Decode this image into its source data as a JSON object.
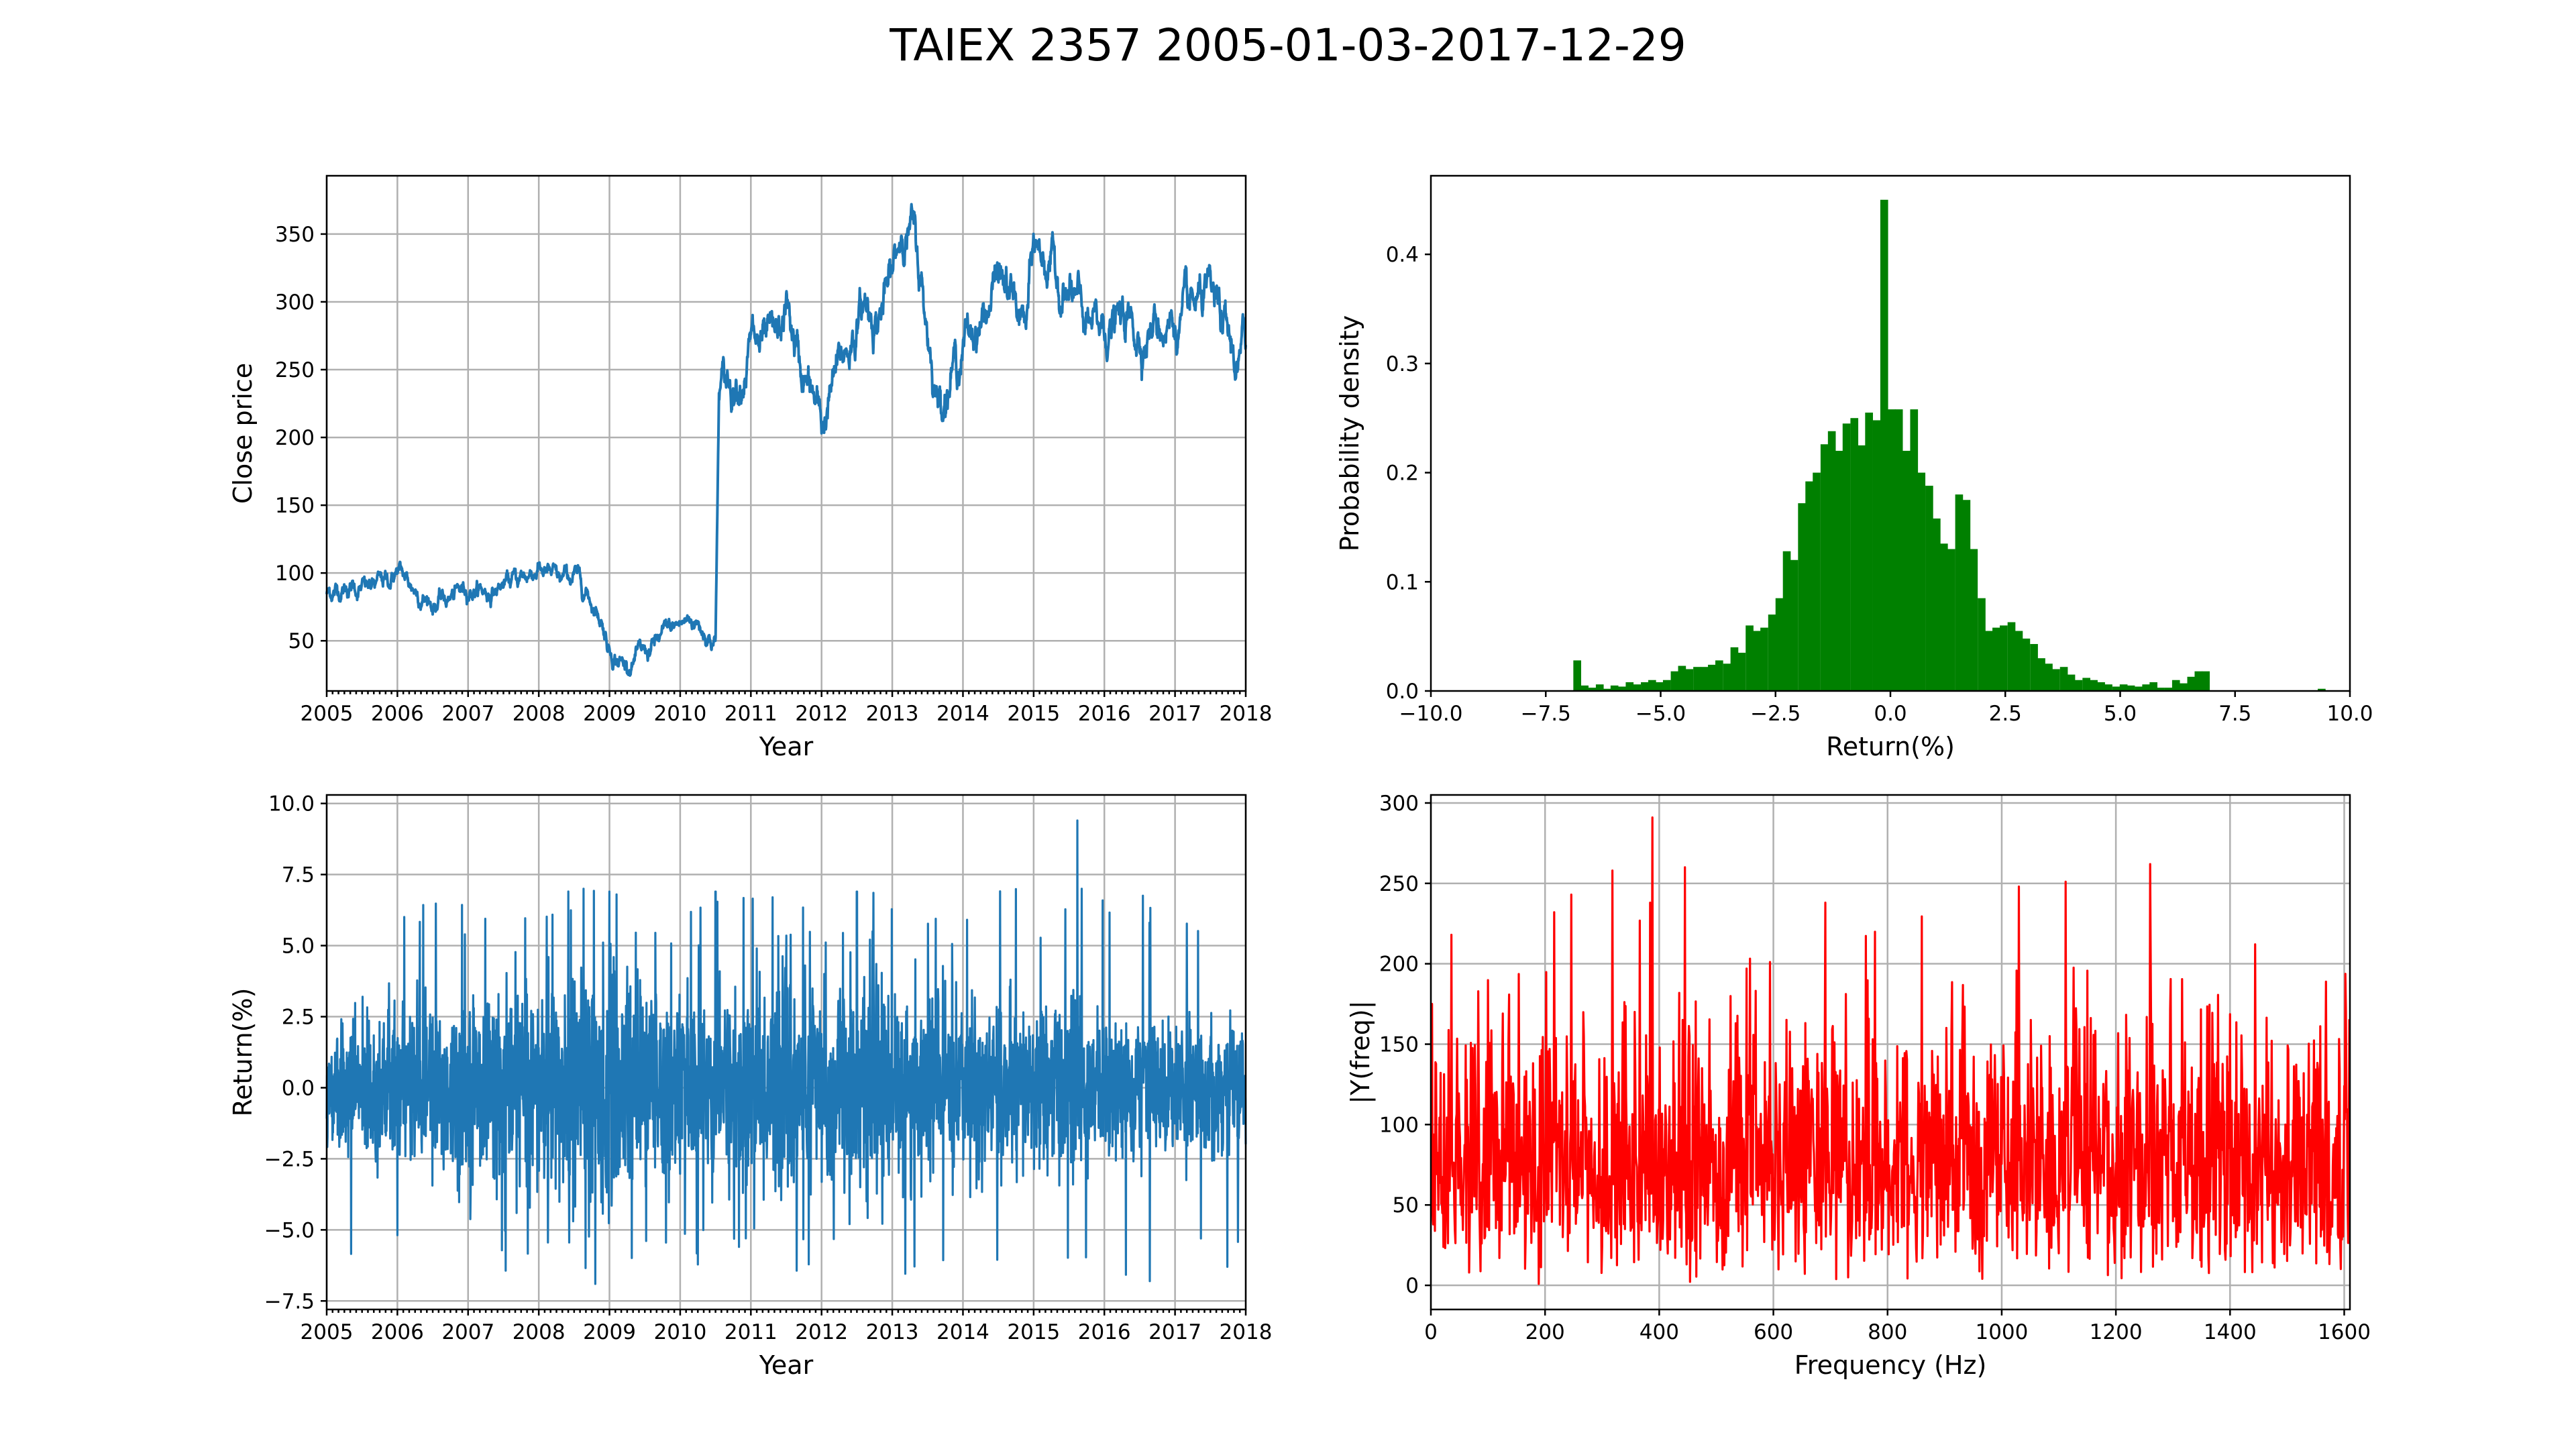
{
  "figure_title": "TAIEX 2357 2005-01-03-2017-12-29",
  "chart_data": [
    {
      "type": "line",
      "id": "price",
      "xlabel": "Year",
      "ylabel": "Close price",
      "xlim": [
        2005,
        2018
      ],
      "ylim": [
        13,
        393
      ],
      "xticks": [
        2005,
        2006,
        2007,
        2008,
        2009,
        2010,
        2011,
        2012,
        2013,
        2014,
        2015,
        2016,
        2017,
        2018
      ],
      "xtick_labels": [
        "2005",
        "2006",
        "2007",
        "2008",
        "2009",
        "2010",
        "2011",
        "2012",
        "2013",
        "2014",
        "2015",
        "2016",
        "2017",
        "2018"
      ],
      "yticks": [
        50,
        100,
        150,
        200,
        250,
        300,
        350
      ],
      "ytick_labels": [
        "50",
        "100",
        "150",
        "200",
        "250",
        "300",
        "350"
      ],
      "grid": true,
      "color": "#1f77b4",
      "x": [
        2005.0,
        2005.3,
        2005.6,
        2005.9,
        2006.0,
        2006.2,
        2006.5,
        2006.8,
        2007.0,
        2007.3,
        2007.6,
        2007.8,
        2008.0,
        2008.1,
        2008.3,
        2008.5,
        2008.7,
        2008.9,
        2009.0,
        2009.2,
        2009.5,
        2009.8,
        2010.0,
        2010.2,
        2010.4,
        2010.48,
        2010.5,
        2010.55,
        2010.7,
        2010.9,
        2011.0,
        2011.2,
        2011.4,
        2011.5,
        2011.7,
        2011.9,
        2012.0,
        2012.2,
        2012.4,
        2012.6,
        2012.8,
        2013.0,
        2013.15,
        2013.3,
        2013.5,
        2013.65,
        2013.8,
        2014.0,
        2014.3,
        2014.5,
        2014.7,
        2014.9,
        2015.0,
        2015.2,
        2015.4,
        2015.6,
        2015.75,
        2015.9,
        2016.0,
        2016.3,
        2016.5,
        2016.8,
        2017.0,
        2017.2,
        2017.4,
        2017.6,
        2017.8,
        2017.9,
        2018.0
      ],
      "y": [
        85,
        90,
        88,
        95,
        102,
        90,
        78,
        82,
        90,
        86,
        93,
        97,
        105,
        100,
        92,
        98,
        85,
        65,
        45,
        33,
        40,
        55,
        62,
        66,
        55,
        50,
        50,
        235,
        240,
        255,
        270,
        262,
        268,
        295,
        250,
        225,
        205,
        245,
        270,
        298,
        290,
        315,
        360,
        350,
        280,
        228,
        245,
        268,
        290,
        320,
        300,
        280,
        340,
        330,
        310,
        295,
        280,
        275,
        282,
        283,
        278,
        285,
        285,
        285,
        300,
        290,
        262,
        250,
        270
      ],
      "noise_amp": 4.5
    },
    {
      "type": "bar",
      "id": "histogram",
      "xlabel": "Return(%)",
      "ylabel": "Probability density",
      "xlim": [
        -10,
        10
      ],
      "ylim": [
        0,
        0.472
      ],
      "xticks": [
        -10,
        -7.5,
        -5,
        -2.5,
        0,
        2.5,
        5,
        7.5,
        10
      ],
      "xtick_labels": [
        "−10.0",
        "−7.5",
        "−5.0",
        "−2.5",
        "0.0",
        "2.5",
        "5.0",
        "7.5",
        "10.0"
      ],
      "yticks": [
        0,
        0.1,
        0.2,
        0.3,
        0.4
      ],
      "ytick_labels": [
        "0.0",
        "0.1",
        "0.2",
        "0.3",
        "0.4"
      ],
      "grid": false,
      "color": "#008000",
      "bin_width": 0.1628,
      "bin_starts": [
        -6.9,
        -6.74,
        -6.57,
        -6.41,
        -6.25,
        -6.09,
        -5.92,
        -5.76,
        -5.6,
        -5.43,
        -5.27,
        -5.11,
        -4.95,
        -4.78,
        -4.62,
        -4.46,
        -4.29,
        -4.13,
        -3.97,
        -3.81,
        -3.64,
        -3.48,
        -3.32,
        -3.15,
        -2.99,
        -2.83,
        -2.66,
        -2.5,
        -2.34,
        -2.18,
        -2.01,
        -1.85,
        -1.69,
        -1.52,
        -1.36,
        -1.2,
        -1.04,
        -0.87,
        -0.71,
        -0.55,
        -0.38,
        -0.22,
        -0.06,
        0.1,
        0.27,
        0.43,
        0.59,
        0.76,
        0.92,
        1.08,
        1.24,
        1.41,
        1.57,
        1.73,
        1.9,
        2.06,
        2.22,
        2.38,
        2.55,
        2.71,
        2.87,
        3.04,
        3.2,
        3.36,
        3.52,
        3.69,
        3.85,
        4.01,
        4.18,
        4.34,
        4.5,
        4.66,
        4.83,
        4.99,
        5.15,
        5.32,
        5.48,
        5.64,
        5.8,
        5.97,
        6.13,
        6.29,
        6.46,
        6.62,
        6.78,
        9.3
      ],
      "values": [
        0.028,
        0.005,
        0.003,
        0.006,
        0.002,
        0.005,
        0.004,
        0.008,
        0.006,
        0.008,
        0.01,
        0.008,
        0.01,
        0.018,
        0.023,
        0.02,
        0.022,
        0.022,
        0.024,
        0.028,
        0.025,
        0.04,
        0.035,
        0.06,
        0.055,
        0.058,
        0.07,
        0.085,
        0.128,
        0.12,
        0.172,
        0.192,
        0.2,
        0.226,
        0.238,
        0.22,
        0.245,
        0.25,
        0.225,
        0.255,
        0.248,
        0.45,
        0.258,
        0.258,
        0.22,
        0.258,
        0.2,
        0.188,
        0.158,
        0.135,
        0.13,
        0.18,
        0.175,
        0.13,
        0.085,
        0.055,
        0.058,
        0.06,
        0.063,
        0.055,
        0.048,
        0.043,
        0.03,
        0.025,
        0.02,
        0.022,
        0.015,
        0.01,
        0.012,
        0.01,
        0.008,
        0.006,
        0.004,
        0.006,
        0.005,
        0.004,
        0.006,
        0.008,
        0.003,
        0.003,
        0.01,
        0.007,
        0.013,
        0.018,
        0.018,
        0.002
      ]
    },
    {
      "type": "line",
      "id": "returns",
      "xlabel": "Year",
      "ylabel": "Return(%)",
      "xlim": [
        2005,
        2018
      ],
      "ylim": [
        -7.8,
        10.3
      ],
      "xticks": [
        2005,
        2006,
        2007,
        2008,
        2009,
        2010,
        2011,
        2012,
        2013,
        2014,
        2015,
        2016,
        2017,
        2018
      ],
      "xtick_labels": [
        "2005",
        "2006",
        "2007",
        "2008",
        "2009",
        "2010",
        "2011",
        "2012",
        "2013",
        "2014",
        "2015",
        "2016",
        "2017",
        "2018"
      ],
      "yticks": [
        -7.5,
        -5.0,
        -2.5,
        0.0,
        2.5,
        5.0,
        7.5,
        10.0
      ],
      "ytick_labels": [
        "−7.5",
        "−5.0",
        "−2.5",
        "0.0",
        "2.5",
        "5.0",
        "7.5",
        "10.0"
      ],
      "grid": true,
      "color": "#1f77b4",
      "sample_count": 3200,
      "volatility_knots": {
        "x": [
          2005,
          2006,
          2007,
          2008,
          2008.5,
          2009,
          2009.5,
          2010,
          2010.5,
          2011,
          2011.5,
          2012,
          2013,
          2014,
          2015,
          2015.6,
          2016,
          2017,
          2018
        ],
        "sd": [
          1.3,
          1.7,
          1.8,
          2.0,
          2.6,
          2.5,
          2.1,
          1.8,
          2.0,
          2.0,
          2.4,
          2.1,
          2.0,
          1.7,
          1.6,
          1.9,
          1.4,
          1.3,
          1.3
        ]
      },
      "highlights": {
        "x": [
          2015.62,
          2015.68,
          2008.8,
          2009.0,
          2010.5,
          2012.5
        ],
        "y": [
          9.4,
          7.0,
          -6.9,
          6.9,
          6.9,
          6.9
        ]
      }
    },
    {
      "type": "line",
      "id": "spectrum",
      "xlabel": "Frequency (Hz)",
      "ylabel": "|Y(freq)|",
      "xlim": [
        0,
        1610
      ],
      "ylim": [
        -15,
        305
      ],
      "xticks": [
        0,
        200,
        400,
        600,
        800,
        1000,
        1200,
        1400,
        1600
      ],
      "xtick_labels": [
        "0",
        "200",
        "400",
        "600",
        "800",
        "1000",
        "1200",
        "1400",
        "1600"
      ],
      "yticks": [
        0,
        50,
        100,
        150,
        200,
        250,
        300
      ],
      "ytick_labels": [
        "0",
        "50",
        "100",
        "150",
        "200",
        "250",
        "300"
      ],
      "grid": true,
      "color": "#ff0000",
      "sample_count": 1610,
      "peaks": {
        "x": [
          388,
          1260,
          318,
          246,
          1030,
          1112,
          445,
          36
        ],
        "y": [
          291,
          262,
          258,
          243,
          248,
          251,
          260,
          218
        ]
      }
    }
  ]
}
